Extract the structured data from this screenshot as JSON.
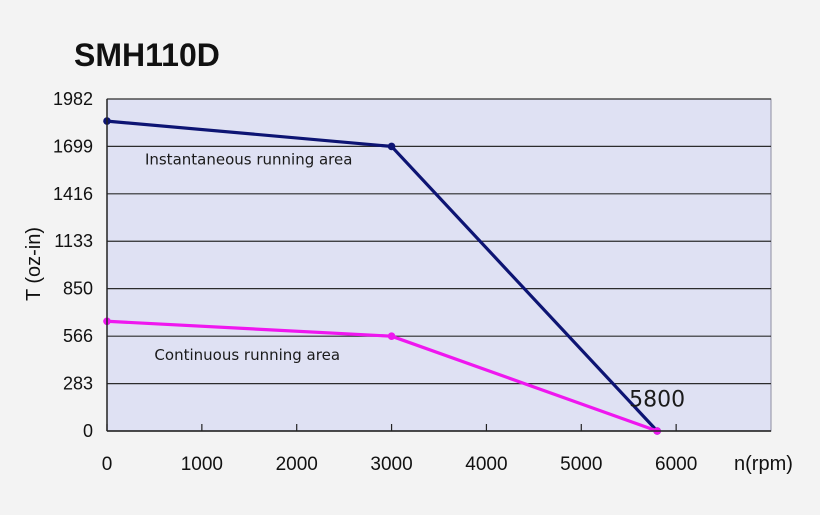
{
  "chart_data": {
    "type": "line",
    "title": "SMH110D",
    "xlabel": "n(rpm)",
    "ylabel": "T (oz-in)",
    "xlim": [
      0,
      7000
    ],
    "ylim": [
      0,
      1982
    ],
    "x_ticks": [
      {
        "value": 0,
        "label": "0"
      },
      {
        "value": 1000,
        "label": "1000"
      },
      {
        "value": 2000,
        "label": "2000"
      },
      {
        "value": 3000,
        "label": "3000"
      },
      {
        "value": 4000,
        "label": "4000"
      },
      {
        "value": 5000,
        "label": "5000"
      },
      {
        "value": 6000,
        "label": "6000"
      }
    ],
    "y_ticks": [
      {
        "value": 0,
        "label": "0"
      },
      {
        "value": 283,
        "label": "283"
      },
      {
        "value": 566,
        "label": "566"
      },
      {
        "value": 850,
        "label": "850"
      },
      {
        "value": 1133,
        "label": "1133"
      },
      {
        "value": 1416,
        "label": "1416"
      },
      {
        "value": 1699,
        "label": "1699"
      },
      {
        "value": 1982,
        "label": "1982"
      }
    ],
    "grid": "horizontal",
    "series": [
      {
        "name": "Instantaneous running area",
        "color": "#0d1473",
        "x": [
          0,
          3000,
          5800
        ],
        "y": [
          1850,
          1699,
          0
        ]
      },
      {
        "name": "Continuous running area",
        "color": "#ef17ef",
        "x": [
          0,
          3000,
          5800
        ],
        "y": [
          655,
          566,
          0
        ]
      }
    ],
    "annotations": [
      {
        "name": "instantaneous-area-label",
        "text": "Instantaneous running area",
        "x": 400,
        "y": 1590
      },
      {
        "name": "continuous-area-label",
        "text": "Continuous running area",
        "x": 500,
        "y": 425
      },
      {
        "name": "endpoint-label",
        "text": "5800",
        "x": 5800,
        "y": 145
      }
    ]
  },
  "colors": {
    "background": "#f3f3f3",
    "plot_background": "#dfe1f3",
    "gridline": "#2c2c2c",
    "axis": "#222222"
  }
}
